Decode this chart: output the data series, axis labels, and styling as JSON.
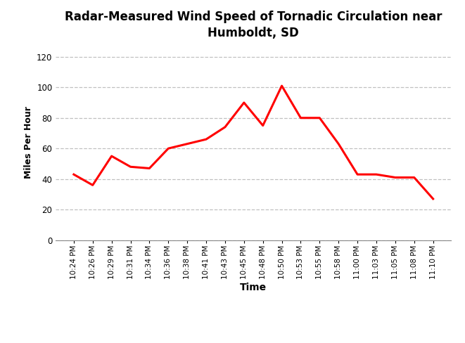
{
  "title": "Radar-Measured Wind Speed of Tornadic Circulation near\nHumboldt, SD",
  "xlabel": "Time",
  "ylabel": "Miles Per Hour",
  "line_color": "#FF0000",
  "line_width": 2.2,
  "background_color": "#FFFFFF",
  "grid_color": "#C0C0C0",
  "ylim": [
    0,
    128
  ],
  "yticks": [
    0,
    20,
    40,
    60,
    80,
    100,
    120
  ],
  "time_labels": [
    "10:24 PM",
    "10:26 PM",
    "10:29 PM",
    "10:31 PM",
    "10:34 PM",
    "10:36 PM",
    "10:38 PM",
    "10:41 PM",
    "10:43 PM",
    "10:45 PM",
    "10:48 PM",
    "10:50 PM",
    "10:53 PM",
    "10:55 PM",
    "10:58 PM",
    "11:00 PM",
    "11:03 PM",
    "11:05 PM",
    "11:08 PM",
    "11:10 PM"
  ],
  "values": [
    43,
    36,
    55,
    48,
    47,
    60,
    63,
    66,
    74,
    90,
    75,
    101,
    80,
    80,
    63,
    43,
    43,
    41,
    41,
    27
  ]
}
